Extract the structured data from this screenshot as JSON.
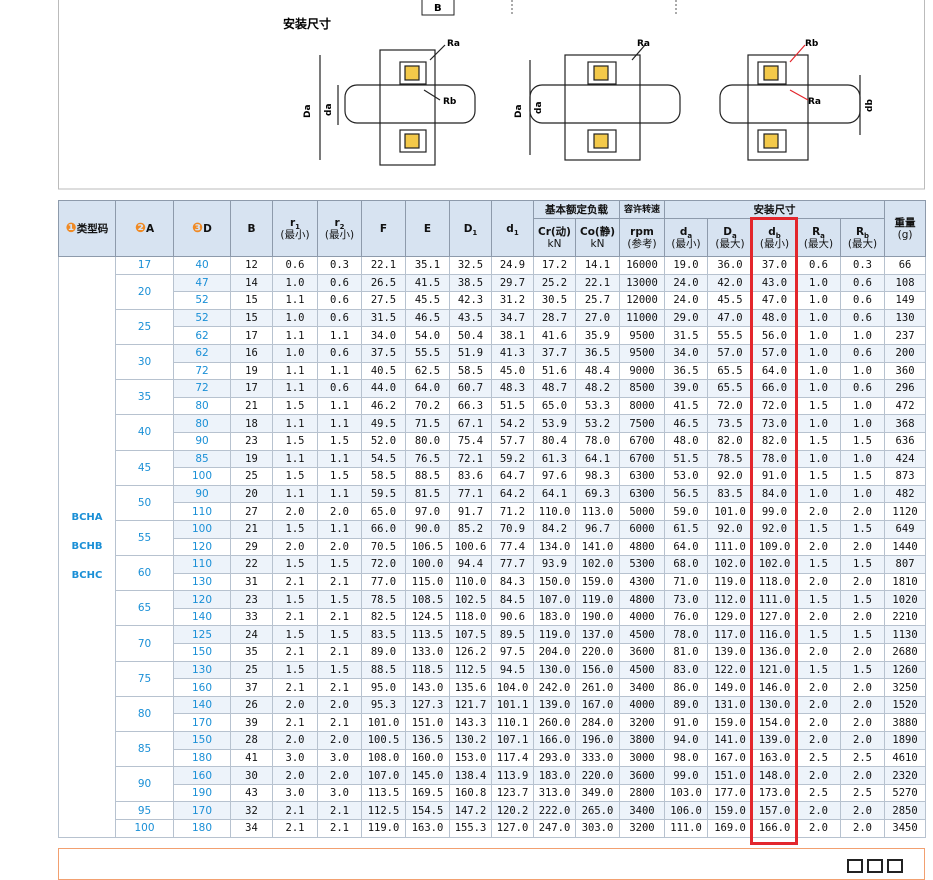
{
  "diagram": {
    "title": "安装尺寸",
    "b_label": "B",
    "labels": [
      "Ra",
      "Rb",
      "Da",
      "da",
      "Ra",
      "Da",
      "da",
      "Rb",
      "Ra",
      "db"
    ]
  },
  "table": {
    "head": [
      {
        "badge": "❶",
        "text": "类型码"
      },
      {
        "badge": "❷",
        "text": "A"
      },
      {
        "badge": "❸",
        "text": "D"
      },
      {
        "text": "B"
      },
      {
        "sym": "r",
        "sub": "1",
        "note": "(最小)"
      },
      {
        "sym": "r",
        "sub": "2",
        "note": "(最小)"
      },
      {
        "text": "F"
      },
      {
        "text": "E"
      },
      {
        "sym": "D",
        "sub": "1"
      },
      {
        "sym": "d",
        "sub": "1"
      }
    ],
    "load": {
      "title": "基本额定负载",
      "cols": [
        {
          "text": "Cr(动)",
          "note": "kN"
        },
        {
          "text": "Co(静)",
          "note": "kN"
        }
      ]
    },
    "speed": {
      "title": "容许转速",
      "col": {
        "text": "rpm",
        "note": "(参考)"
      }
    },
    "mount": {
      "title": "安装尺寸",
      "cols": [
        {
          "sym": "d",
          "sub": "a",
          "note": "(最小)"
        },
        {
          "sym": "D",
          "sub": "a",
          "note": "(最大)"
        },
        {
          "sym": "d",
          "sub": "b",
          "note": "(最小)"
        },
        {
          "sym": "R",
          "sub": "a",
          "note": "(最大)"
        },
        {
          "sym": "R",
          "sub": "b",
          "note": "(最大)"
        }
      ]
    },
    "weight": {
      "text": "重量",
      "note": "(g)"
    },
    "type_codes": [
      "BCHA",
      "BCHB",
      "BCHC"
    ],
    "groups": [
      {
        "A": "17",
        "rows": [
          [
            "40",
            "12",
            "0.6",
            "0.3",
            "22.1",
            "35.1",
            "32.5",
            "24.9",
            "17.2",
            "14.1",
            "16000",
            "19.0",
            "36.0",
            "37.0",
            "0.6",
            "0.3",
            "66"
          ]
        ]
      },
      {
        "A": "20",
        "rows": [
          [
            "47",
            "14",
            "1.0",
            "0.6",
            "26.5",
            "41.5",
            "38.5",
            "29.7",
            "25.2",
            "22.1",
            "13000",
            "24.0",
            "42.0",
            "43.0",
            "1.0",
            "0.6",
            "108"
          ],
          [
            "52",
            "15",
            "1.1",
            "0.6",
            "27.5",
            "45.5",
            "42.3",
            "31.2",
            "30.5",
            "25.7",
            "12000",
            "24.0",
            "45.5",
            "47.0",
            "1.0",
            "0.6",
            "149"
          ]
        ]
      },
      {
        "A": "25",
        "rows": [
          [
            "52",
            "15",
            "1.0",
            "0.6",
            "31.5",
            "46.5",
            "43.5",
            "34.7",
            "28.7",
            "27.0",
            "11000",
            "29.0",
            "47.0",
            "48.0",
            "1.0",
            "0.6",
            "130"
          ],
          [
            "62",
            "17",
            "1.1",
            "1.1",
            "34.0",
            "54.0",
            "50.4",
            "38.1",
            "41.6",
            "35.9",
            "9500",
            "31.5",
            "55.5",
            "56.0",
            "1.0",
            "1.0",
            "237"
          ]
        ]
      },
      {
        "A": "30",
        "rows": [
          [
            "62",
            "16",
            "1.0",
            "0.6",
            "37.5",
            "55.5",
            "51.9",
            "41.3",
            "37.7",
            "36.5",
            "9500",
            "34.0",
            "57.0",
            "57.0",
            "1.0",
            "0.6",
            "200"
          ],
          [
            "72",
            "19",
            "1.1",
            "1.1",
            "40.5",
            "62.5",
            "58.5",
            "45.0",
            "51.6",
            "48.4",
            "9000",
            "36.5",
            "65.5",
            "64.0",
            "1.0",
            "1.0",
            "360"
          ]
        ]
      },
      {
        "A": "35",
        "rows": [
          [
            "72",
            "17",
            "1.1",
            "0.6",
            "44.0",
            "64.0",
            "60.7",
            "48.3",
            "48.7",
            "48.2",
            "8500",
            "39.0",
            "65.5",
            "66.0",
            "1.0",
            "0.6",
            "296"
          ],
          [
            "80",
            "21",
            "1.5",
            "1.1",
            "46.2",
            "70.2",
            "66.3",
            "51.5",
            "65.0",
            "53.3",
            "8000",
            "41.5",
            "72.0",
            "72.0",
            "1.5",
            "1.0",
            "472"
          ]
        ]
      },
      {
        "A": "40",
        "rows": [
          [
            "80",
            "18",
            "1.1",
            "1.1",
            "49.5",
            "71.5",
            "67.1",
            "54.2",
            "53.9",
            "53.2",
            "7500",
            "46.5",
            "73.5",
            "73.0",
            "1.0",
            "1.0",
            "368"
          ],
          [
            "90",
            "23",
            "1.5",
            "1.5",
            "52.0",
            "80.0",
            "75.4",
            "57.7",
            "80.4",
            "78.0",
            "6700",
            "48.0",
            "82.0",
            "82.0",
            "1.5",
            "1.5",
            "636"
          ]
        ]
      },
      {
        "A": "45",
        "rows": [
          [
            "85",
            "19",
            "1.1",
            "1.1",
            "54.5",
            "76.5",
            "72.1",
            "59.2",
            "61.3",
            "64.1",
            "6700",
            "51.5",
            "78.5",
            "78.0",
            "1.0",
            "1.0",
            "424"
          ],
          [
            "100",
            "25",
            "1.5",
            "1.5",
            "58.5",
            "88.5",
            "83.6",
            "64.7",
            "97.6",
            "98.3",
            "6300",
            "53.0",
            "92.0",
            "91.0",
            "1.5",
            "1.5",
            "873"
          ]
        ]
      },
      {
        "A": "50",
        "rows": [
          [
            "90",
            "20",
            "1.1",
            "1.1",
            "59.5",
            "81.5",
            "77.1",
            "64.2",
            "64.1",
            "69.3",
            "6300",
            "56.5",
            "83.5",
            "84.0",
            "1.0",
            "1.0",
            "482"
          ],
          [
            "110",
            "27",
            "2.0",
            "2.0",
            "65.0",
            "97.0",
            "91.7",
            "71.2",
            "110.0",
            "113.0",
            "5000",
            "59.0",
            "101.0",
            "99.0",
            "2.0",
            "2.0",
            "1120"
          ]
        ]
      },
      {
        "A": "55",
        "rows": [
          [
            "100",
            "21",
            "1.5",
            "1.1",
            "66.0",
            "90.0",
            "85.2",
            "70.9",
            "84.2",
            "96.7",
            "6000",
            "61.5",
            "92.0",
            "92.0",
            "1.5",
            "1.5",
            "649"
          ],
          [
            "120",
            "29",
            "2.0",
            "2.0",
            "70.5",
            "106.5",
            "100.6",
            "77.4",
            "134.0",
            "141.0",
            "4800",
            "64.0",
            "111.0",
            "109.0",
            "2.0",
            "2.0",
            "1440"
          ]
        ]
      },
      {
        "A": "60",
        "rows": [
          [
            "110",
            "22",
            "1.5",
            "1.5",
            "72.0",
            "100.0",
            "94.4",
            "77.7",
            "93.9",
            "102.0",
            "5300",
            "68.0",
            "102.0",
            "102.0",
            "1.5",
            "1.5",
            "807"
          ],
          [
            "130",
            "31",
            "2.1",
            "2.1",
            "77.0",
            "115.0",
            "110.0",
            "84.3",
            "150.0",
            "159.0",
            "4300",
            "71.0",
            "119.0",
            "118.0",
            "2.0",
            "2.0",
            "1810"
          ]
        ]
      },
      {
        "A": "65",
        "rows": [
          [
            "120",
            "23",
            "1.5",
            "1.5",
            "78.5",
            "108.5",
            "102.5",
            "84.5",
            "107.0",
            "119.0",
            "4800",
            "73.0",
            "112.0",
            "111.0",
            "1.5",
            "1.5",
            "1020"
          ],
          [
            "140",
            "33",
            "2.1",
            "2.1",
            "82.5",
            "124.5",
            "118.0",
            "90.6",
            "183.0",
            "190.0",
            "4000",
            "76.0",
            "129.0",
            "127.0",
            "2.0",
            "2.0",
            "2210"
          ]
        ]
      },
      {
        "A": "70",
        "rows": [
          [
            "125",
            "24",
            "1.5",
            "1.5",
            "83.5",
            "113.5",
            "107.5",
            "89.5",
            "119.0",
            "137.0",
            "4500",
            "78.0",
            "117.0",
            "116.0",
            "1.5",
            "1.5",
            "1130"
          ],
          [
            "150",
            "35",
            "2.1",
            "2.1",
            "89.0",
            "133.0",
            "126.2",
            "97.5",
            "204.0",
            "220.0",
            "3600",
            "81.0",
            "139.0",
            "136.0",
            "2.0",
            "2.0",
            "2680"
          ]
        ]
      },
      {
        "A": "75",
        "rows": [
          [
            "130",
            "25",
            "1.5",
            "1.5",
            "88.5",
            "118.5",
            "112.5",
            "94.5",
            "130.0",
            "156.0",
            "4500",
            "83.0",
            "122.0",
            "121.0",
            "1.5",
            "1.5",
            "1260"
          ],
          [
            "160",
            "37",
            "2.1",
            "2.1",
            "95.0",
            "143.0",
            "135.6",
            "104.0",
            "242.0",
            "261.0",
            "3400",
            "86.0",
            "149.0",
            "146.0",
            "2.0",
            "2.0",
            "3250"
          ]
        ]
      },
      {
        "A": "80",
        "rows": [
          [
            "140",
            "26",
            "2.0",
            "2.0",
            "95.3",
            "127.3",
            "121.7",
            "101.1",
            "139.0",
            "167.0",
            "4000",
            "89.0",
            "131.0",
            "130.0",
            "2.0",
            "2.0",
            "1520"
          ],
          [
            "170",
            "39",
            "2.1",
            "2.1",
            "101.0",
            "151.0",
            "143.3",
            "110.1",
            "260.0",
            "284.0",
            "3200",
            "91.0",
            "159.0",
            "154.0",
            "2.0",
            "2.0",
            "3880"
          ]
        ]
      },
      {
        "A": "85",
        "rows": [
          [
            "150",
            "28",
            "2.0",
            "2.0",
            "100.5",
            "136.5",
            "130.2",
            "107.1",
            "166.0",
            "196.0",
            "3800",
            "94.0",
            "141.0",
            "139.0",
            "2.0",
            "2.0",
            "1890"
          ],
          [
            "180",
            "41",
            "3.0",
            "3.0",
            "108.0",
            "160.0",
            "153.0",
            "117.4",
            "293.0",
            "333.0",
            "3000",
            "98.0",
            "167.0",
            "163.0",
            "2.5",
            "2.5",
            "4610"
          ]
        ]
      },
      {
        "A": "90",
        "rows": [
          [
            "160",
            "30",
            "2.0",
            "2.0",
            "107.0",
            "145.0",
            "138.4",
            "113.9",
            "183.0",
            "220.0",
            "3600",
            "99.0",
            "151.0",
            "148.0",
            "2.0",
            "2.0",
            "2320"
          ],
          [
            "190",
            "43",
            "3.0",
            "3.0",
            "113.5",
            "169.5",
            "160.8",
            "123.7",
            "313.0",
            "349.0",
            "2800",
            "103.0",
            "177.0",
            "173.0",
            "2.5",
            "2.5",
            "5270"
          ]
        ]
      },
      {
        "A": "95",
        "rows": [
          [
            "170",
            "32",
            "2.1",
            "2.1",
            "112.5",
            "154.5",
            "147.2",
            "120.2",
            "222.0",
            "265.0",
            "3400",
            "106.0",
            "159.0",
            "157.0",
            "2.0",
            "2.0",
            "2850"
          ]
        ]
      },
      {
        "A": "100",
        "rows": [
          [
            "180",
            "34",
            "2.1",
            "2.1",
            "119.0",
            "163.0",
            "155.3",
            "127.0",
            "247.0",
            "303.0",
            "3200",
            "111.0",
            "169.0",
            "166.0",
            "2.0",
            "2.0",
            "3450"
          ]
        ]
      }
    ]
  }
}
